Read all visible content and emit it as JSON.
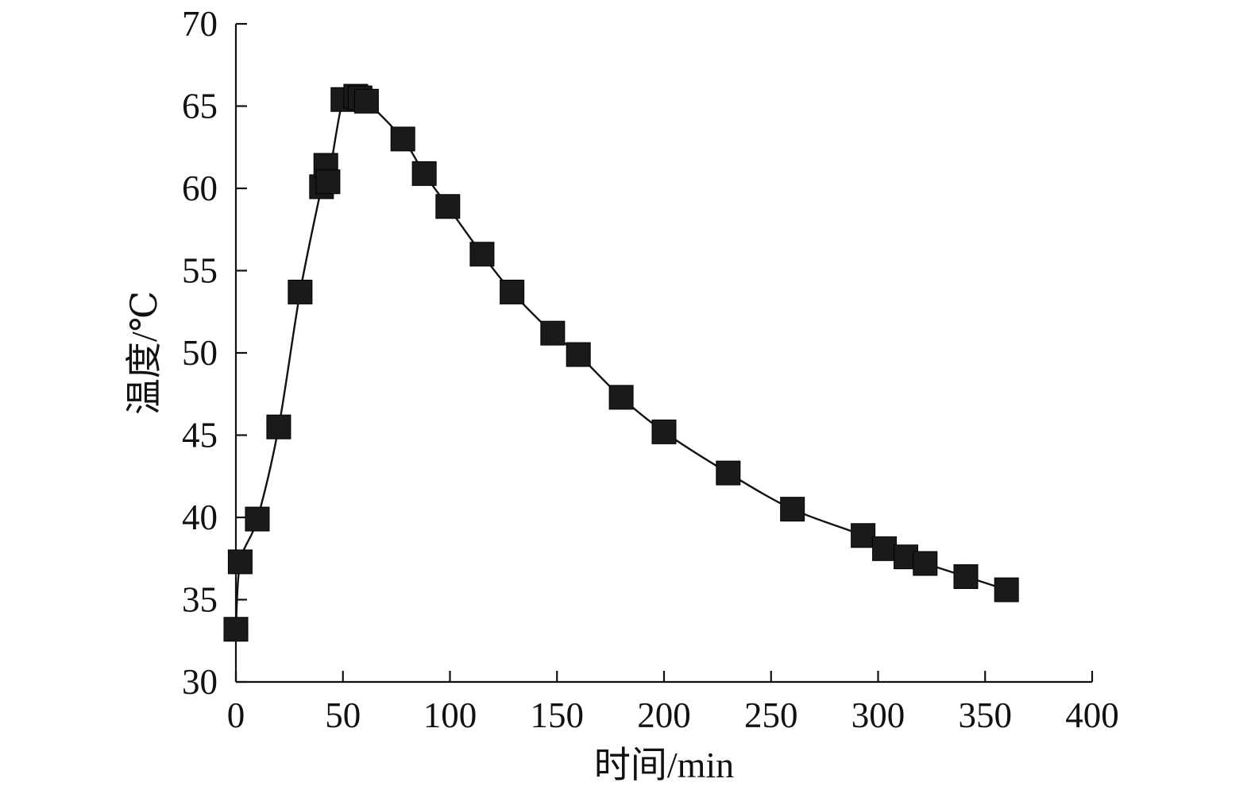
{
  "chart_data": {
    "type": "scatter",
    "title": "",
    "xlabel": "时间/min",
    "ylabel": "温度/℃",
    "xlim": [
      0,
      400
    ],
    "ylim": [
      30,
      70
    ],
    "xticks": [
      0,
      50,
      100,
      150,
      200,
      250,
      300,
      350,
      400
    ],
    "yticks": [
      30,
      35,
      40,
      45,
      50,
      55,
      60,
      65,
      70
    ],
    "grid": false,
    "legend": "none",
    "colors": {
      "series": "#1a1a1a",
      "axis": "#111111"
    },
    "series": [
      {
        "marker": "square",
        "line": "smooth",
        "x": [
          0,
          2,
          10,
          20,
          30,
          40,
          42,
          43,
          50,
          56,
          58,
          61,
          78,
          88,
          99,
          115,
          129,
          148,
          160,
          180,
          200,
          230,
          260,
          293,
          303,
          313,
          322,
          341,
          360
        ],
        "y": [
          33.2,
          37.3,
          39.9,
          45.5,
          53.7,
          60.1,
          61.4,
          60.4,
          65.4,
          65.6,
          65.5,
          65.3,
          63.0,
          60.9,
          58.9,
          56.0,
          53.7,
          51.2,
          49.9,
          47.3,
          45.2,
          42.7,
          40.5,
          38.9,
          38.1,
          37.6,
          37.2,
          36.4,
          35.6
        ]
      }
    ]
  }
}
